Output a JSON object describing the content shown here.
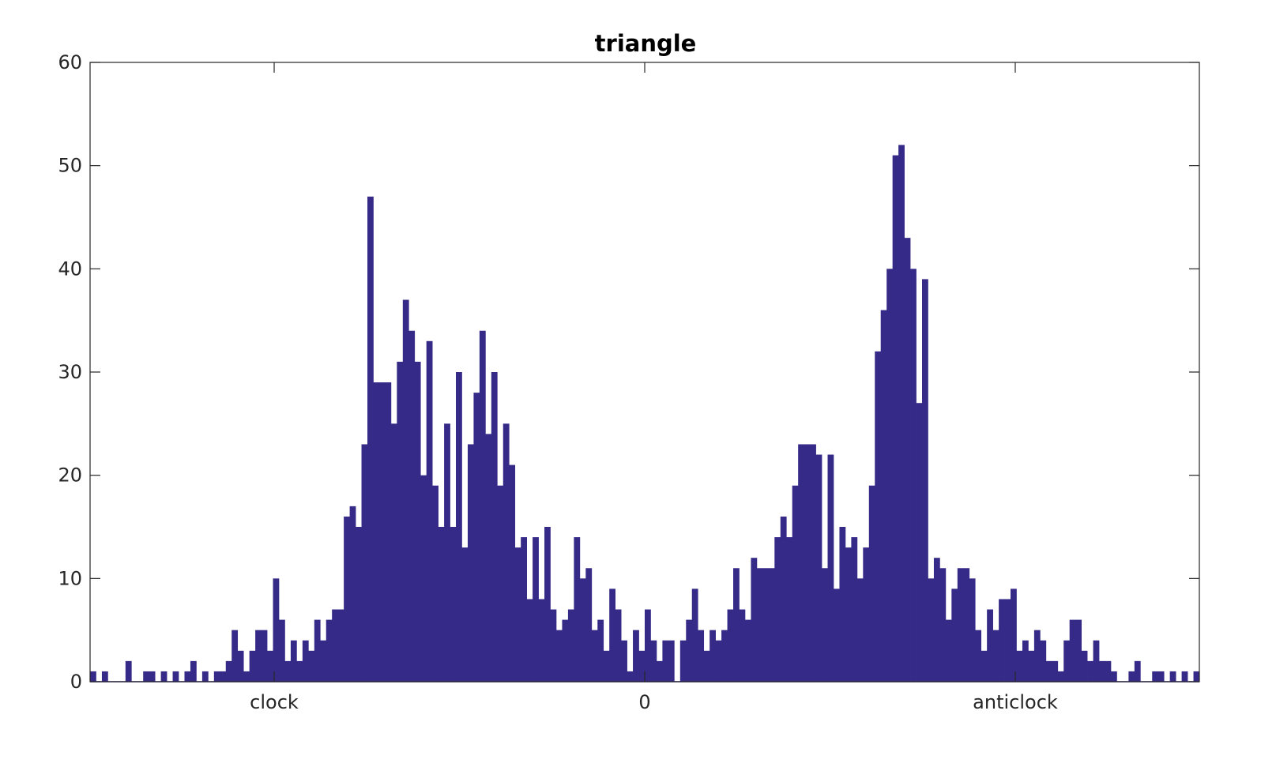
{
  "chart_data": {
    "type": "bar",
    "title": "triangle",
    "xlabel": "",
    "ylabel": "",
    "ylim": [
      0,
      60
    ],
    "xlim": [
      0,
      188
    ],
    "y_ticks": [
      0,
      10,
      20,
      30,
      40,
      50,
      60
    ],
    "y_tick_labels": [
      "0",
      "10",
      "20",
      "30",
      "40",
      "50",
      "60"
    ],
    "x_ticks": [
      {
        "label": "clock",
        "at": 31.2
      },
      {
        "label": "0",
        "at": 94
      },
      {
        "label": "anticlock",
        "at": 156.8
      }
    ],
    "grid": false,
    "legend": "none",
    "bar_color": "#352a87",
    "values": [
      1,
      0,
      1,
      0,
      0,
      0,
      2,
      0,
      0,
      1,
      1,
      0,
      1,
      0,
      1,
      0,
      1,
      2,
      0,
      1,
      0,
      1,
      1,
      2,
      5,
      3,
      1,
      3,
      5,
      5,
      3,
      10,
      6,
      2,
      4,
      2,
      4,
      3,
      6,
      4,
      6,
      7,
      7,
      16,
      17,
      15,
      23,
      47,
      29,
      29,
      29,
      25,
      31,
      37,
      34,
      31,
      20,
      33,
      19,
      15,
      25,
      15,
      30,
      13,
      23,
      28,
      34,
      24,
      30,
      19,
      25,
      21,
      13,
      14,
      8,
      14,
      8,
      15,
      7,
      5,
      6,
      7,
      14,
      10,
      11,
      5,
      6,
      3,
      9,
      7,
      4,
      1,
      5,
      3,
      7,
      4,
      2,
      4,
      4,
      0,
      4,
      6,
      9,
      5,
      3,
      5,
      4,
      5,
      7,
      11,
      7,
      6,
      12,
      11,
      11,
      11,
      14,
      16,
      14,
      19,
      23,
      23,
      23,
      22,
      11,
      22,
      9,
      15,
      13,
      14,
      10,
      13,
      19,
      32,
      36,
      40,
      51,
      52,
      43,
      40,
      27,
      39,
      10,
      12,
      11,
      6,
      9,
      11,
      11,
      10,
      5,
      3,
      7,
      5,
      8,
      8,
      9,
      3,
      4,
      3,
      5,
      4,
      2,
      2,
      1,
      4,
      6,
      6,
      3,
      2,
      4,
      2,
      2,
      1,
      0,
      0,
      1,
      2,
      0,
      0,
      1,
      1,
      0,
      1,
      0,
      1,
      0,
      1
    ]
  }
}
